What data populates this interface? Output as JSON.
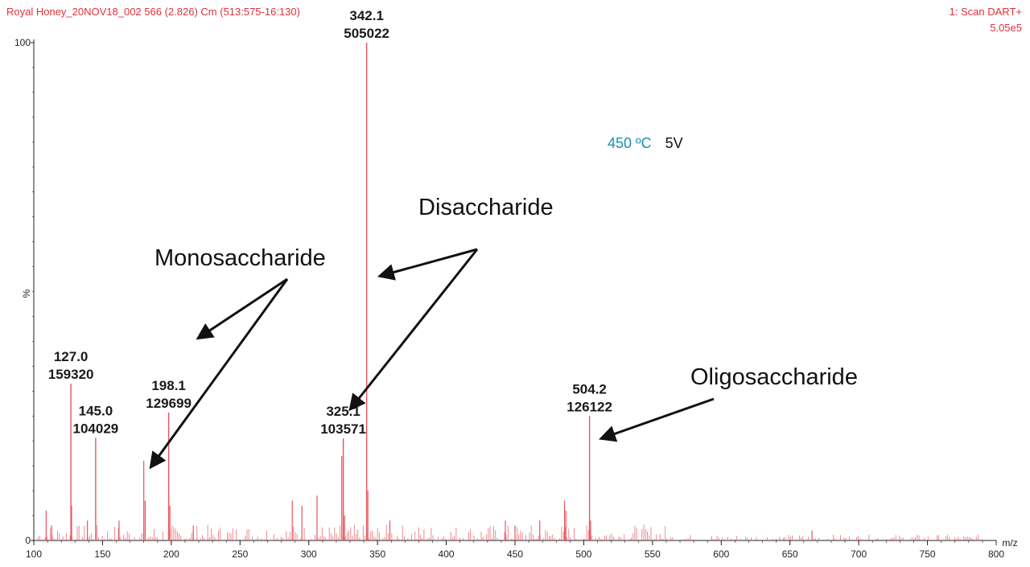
{
  "header": {
    "left": "Royal Honey_20NOV18_002  566 (2.826) Cm (513:575-16:130)",
    "right_line1": "1: Scan DART+",
    "right_line2": "5.05e5"
  },
  "conditions": {
    "temperature": "450 ºC",
    "voltage": "5V",
    "temperature_color": "#1a8fb0"
  },
  "colors": {
    "peak": "#e8555d",
    "axis": "#222222",
    "arrow": "#111111"
  },
  "chart_data": {
    "type": "bar",
    "xlabel": "m/z",
    "ylabel": "%",
    "xlim": [
      100,
      800
    ],
    "ylim": [
      0,
      100
    ],
    "x_ticks": [
      100,
      150,
      200,
      250,
      300,
      350,
      400,
      450,
      500,
      550,
      600,
      650,
      700,
      750,
      800
    ],
    "y_ticks": [
      0,
      100
    ],
    "grid": false,
    "labeled_peaks": [
      {
        "mz": 127.0,
        "rel": 31.5,
        "mz_label": "127.0",
        "intensity_label": "159320"
      },
      {
        "mz": 145.0,
        "rel": 20.6,
        "mz_label": "145.0",
        "intensity_label": "104029"
      },
      {
        "mz": 198.1,
        "rel": 25.7,
        "mz_label": "198.1",
        "intensity_label": "129699"
      },
      {
        "mz": 325.1,
        "rel": 20.5,
        "mz_label": "325.1",
        "intensity_label": "103571"
      },
      {
        "mz": 342.1,
        "rel": 100,
        "mz_label": "342.1",
        "intensity_label": "505022"
      },
      {
        "mz": 504.2,
        "rel": 25.0,
        "mz_label": "504.2",
        "intensity_label": "126122"
      }
    ],
    "minor_peaks": [
      {
        "mz": 109,
        "rel": 6
      },
      {
        "mz": 113,
        "rel": 3
      },
      {
        "mz": 127.5,
        "rel": 7
      },
      {
        "mz": 139,
        "rel": 4
      },
      {
        "mz": 162,
        "rel": 4
      },
      {
        "mz": 180,
        "rel": 16
      },
      {
        "mz": 181,
        "rel": 8
      },
      {
        "mz": 199,
        "rel": 7
      },
      {
        "mz": 216,
        "rel": 3
      },
      {
        "mz": 288,
        "rel": 8
      },
      {
        "mz": 295,
        "rel": 7
      },
      {
        "mz": 306,
        "rel": 9
      },
      {
        "mz": 324,
        "rel": 17
      },
      {
        "mz": 326,
        "rel": 5
      },
      {
        "mz": 343,
        "rel": 10
      },
      {
        "mz": 359,
        "rel": 4
      },
      {
        "mz": 443,
        "rel": 4
      },
      {
        "mz": 450,
        "rel": 3
      },
      {
        "mz": 468,
        "rel": 4
      },
      {
        "mz": 486,
        "rel": 8
      },
      {
        "mz": 487,
        "rel": 6
      },
      {
        "mz": 505,
        "rel": 4
      },
      {
        "mz": 666,
        "rel": 2
      }
    ],
    "annotations": [
      {
        "text": "Monosaccharide",
        "targets_mz": [
          180,
          198.1
        ]
      },
      {
        "text": "Disaccharide",
        "targets_mz": [
          325.1,
          342.1
        ]
      },
      {
        "text": "Oligosaccharide",
        "targets_mz": [
          504.2
        ]
      }
    ]
  }
}
